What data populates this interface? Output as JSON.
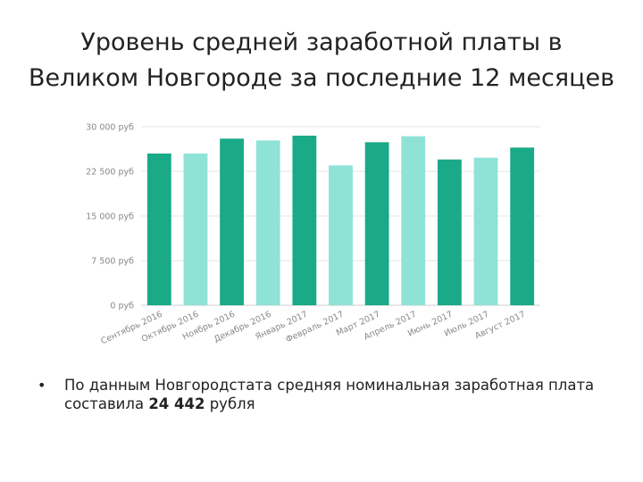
{
  "slide": {
    "title_line1": "Уровень средней заработной платы в",
    "title_line2": "Великом Новгороде за последние 12 месяцев",
    "bullet": {
      "text_before": "По данным Новгородстата  средняя номинальная заработная плата составила ",
      "value": "24 442",
      "text_after": " рубля"
    }
  },
  "chart_data": {
    "type": "bar",
    "categories": [
      "Сентябрь 2016",
      "Октябрь 2016",
      "Ноябрь 2016",
      "Декабрь 2016",
      "Январь 2017",
      "Февраль 2017",
      "Март 2017",
      "Апрель 2017",
      "Июнь 2017",
      "Июль 2017",
      "Август 2017"
    ],
    "values": [
      25500,
      25500,
      28000,
      27700,
      28500,
      23500,
      27400,
      28400,
      24500,
      24800,
      26500
    ],
    "ylim": [
      0,
      30000
    ],
    "yticks": [
      0,
      7500,
      15000,
      22500,
      30000
    ],
    "ytick_labels": [
      "0 руб",
      "7 500 руб",
      "15 000 руб",
      "22 500 руб",
      "30 000 руб"
    ],
    "bar_colors": [
      "#1aaa87",
      "#8fe3d6"
    ],
    "grid": true,
    "grid_color": "#e6e6e6",
    "tick_label_color": "#888888"
  }
}
